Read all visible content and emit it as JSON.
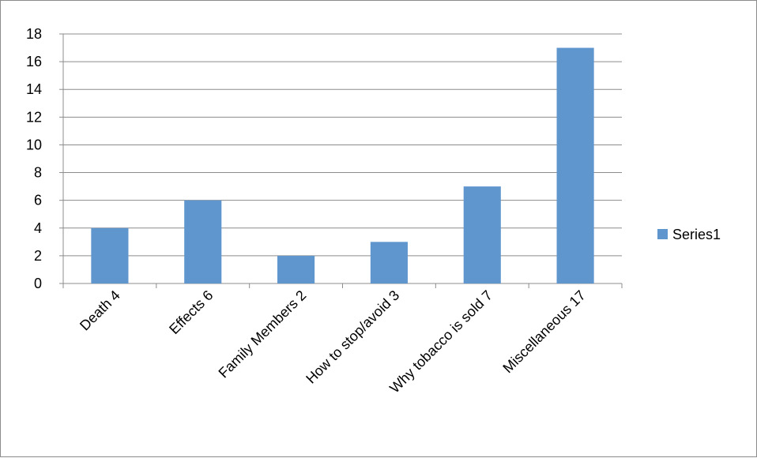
{
  "chart_data": {
    "type": "bar",
    "title": "",
    "xlabel": "",
    "ylabel": "",
    "categories": [
      "Death 4",
      "Effects 6",
      "Family Members 2",
      "How to stop/avoid 3",
      "Why tobacco is sold 7",
      "Miscellaneous 17"
    ],
    "series": [
      {
        "name": "Series1",
        "values": [
          4,
          6,
          2,
          3,
          7,
          17
        ],
        "color": "#6096CE"
      }
    ],
    "ylim": [
      0,
      18
    ],
    "yticks": [
      "0",
      "2",
      "4",
      "6",
      "8",
      "10",
      "12",
      "14",
      "16",
      "18"
    ],
    "grid": true,
    "legend_position": "right"
  }
}
